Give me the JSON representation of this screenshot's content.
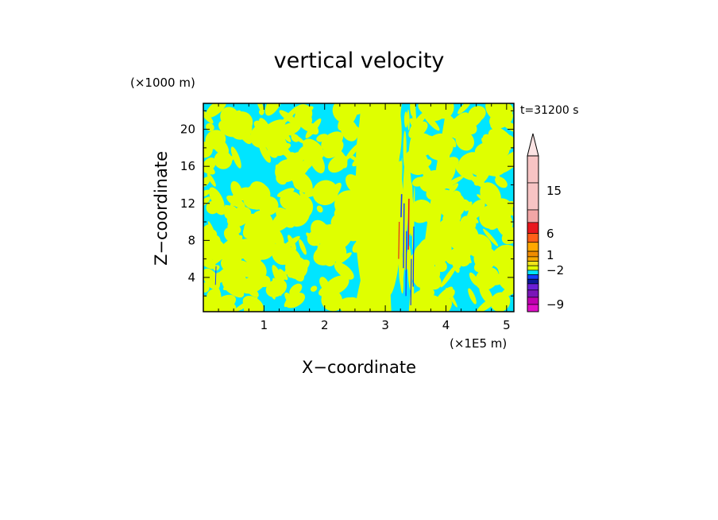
{
  "chart_data": {
    "type": "heatmap",
    "title": "vertical velocity",
    "xlabel": "X−coordinate",
    "ylabel": "Z−coordinate",
    "x_unit": "(×1E5 m)",
    "y_unit": "(×1000 m)",
    "annotation": "t=31200 s",
    "xlim": [
      0.0,
      5.12
    ],
    "ylim": [
      0.3,
      22.8
    ],
    "x_ticks": [
      "1",
      "2",
      "3",
      "4",
      "5"
    ],
    "y_ticks": [
      "4",
      "8",
      "12",
      "16",
      "20"
    ],
    "legend_placement": "right",
    "colorbar": {
      "labels": [
        {
          "text": "−9",
          "value": -9
        },
        {
          "text": "−2",
          "value": -2
        },
        {
          "text": "1",
          "value": 1
        },
        {
          "text": "6",
          "value": 6
        },
        {
          "text": "15",
          "value": 15
        }
      ],
      "colors_top_to_bottom": [
        "#f7c4c4",
        "#f7c4c4",
        "#f2a6a6",
        "#e8171e",
        "#ff5f18",
        "#ffa800",
        "#f08c00",
        "#f5a800",
        "#f0e41a",
        "#dfff00",
        "#00e5ff",
        "#1440ff",
        "#0a1a9a",
        "#6a1fd6",
        "#7a16b8",
        "#c000b0",
        "#e010c8"
      ]
    },
    "field": {
      "background_color": "#00e5ff",
      "primary_color": "#dfff00",
      "strong_up_color": "#e8171e",
      "strong_down_color": "#1440ff"
    }
  }
}
